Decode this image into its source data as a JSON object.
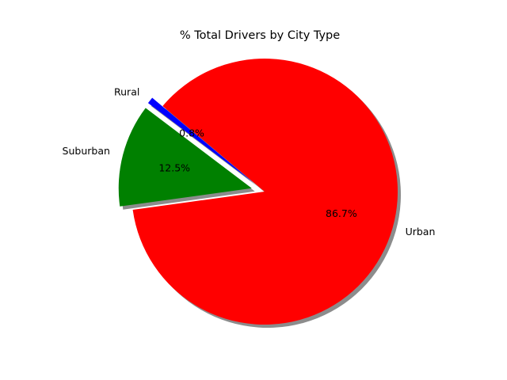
{
  "chart_data": {
    "type": "pie",
    "title": "% Total Drivers by City Type",
    "slices": [
      {
        "label": "Rural",
        "value": 0.8,
        "pct_label": "0.8%",
        "color": "#0000ff"
      },
      {
        "label": "Suburban",
        "value": 12.5,
        "pct_label": "12.5%",
        "color": "#008000"
      },
      {
        "label": "Urban",
        "value": 86.7,
        "pct_label": "86.7%",
        "color": "#ff0000"
      }
    ],
    "shadow": true,
    "explode": [
      0.1,
      0.1,
      0
    ]
  }
}
